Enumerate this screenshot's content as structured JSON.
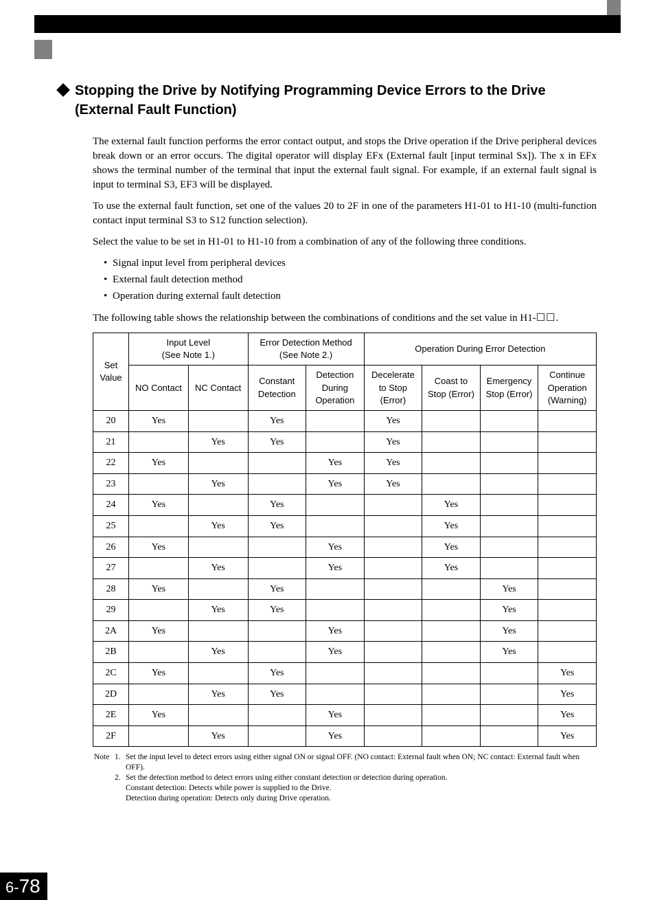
{
  "heading": "Stopping the Drive by Notifying Programming Device Errors to the Drive (External Fault Function)",
  "paragraphs": {
    "p1": "The external fault function performs the error contact output, and stops the Drive operation if the Drive peripheral devices break down or an error occurs. The digital operator will display EFx (External fault [input terminal Sx]). The x in EFx shows the terminal number of the terminal that input the external fault signal. For example, if an external fault signal is input to terminal S3, EF3 will be displayed.",
    "p2": "To use the external fault function, set one of the values 20 to 2F in one of the parameters H1-01 to H1-10 (multi-function contact input terminal S3 to S12 function selection).",
    "p3": "Select the value to be set in H1-01 to H1-10 from a combination of any of the following three conditions.",
    "p4_prefix": "The following table shows the relationship between the combinations of conditions and the set value in H1-",
    "p4_suffix": "."
  },
  "bullets": {
    "b1": "Signal input level from peripheral devices",
    "b2": "External fault detection method",
    "b3": "Operation during external fault detection"
  },
  "table": {
    "headers": {
      "set_value": "Set Value",
      "input_level": "Input Level\n(See Note 1.)",
      "error_detection": "Error Detection Method\n(See Note 2.)",
      "operation_during": "Operation During Error Detection",
      "no_contact": "NO Contact",
      "nc_contact": "NC Contact",
      "constant": "Constant Detection",
      "during_op": "Detection During Operation",
      "decel": "Decelerate to Stop (Error)",
      "coast": "Coast to Stop (Error)",
      "emergency": "Emergency Stop (Error)",
      "continue": "Continue Operation (Warning)"
    },
    "rows": [
      {
        "sv": "20",
        "no": "Yes",
        "nc": "",
        "cd": "Yes",
        "do": "",
        "dec": "Yes",
        "co": "",
        "em": "",
        "con": ""
      },
      {
        "sv": "21",
        "no": "",
        "nc": "Yes",
        "cd": "Yes",
        "do": "",
        "dec": "Yes",
        "co": "",
        "em": "",
        "con": ""
      },
      {
        "sv": "22",
        "no": "Yes",
        "nc": "",
        "cd": "",
        "do": "Yes",
        "dec": "Yes",
        "co": "",
        "em": "",
        "con": ""
      },
      {
        "sv": "23",
        "no": "",
        "nc": "Yes",
        "cd": "",
        "do": "Yes",
        "dec": "Yes",
        "co": "",
        "em": "",
        "con": ""
      },
      {
        "sv": "24",
        "no": "Yes",
        "nc": "",
        "cd": "Yes",
        "do": "",
        "dec": "",
        "co": "Yes",
        "em": "",
        "con": ""
      },
      {
        "sv": "25",
        "no": "",
        "nc": "Yes",
        "cd": "Yes",
        "do": "",
        "dec": "",
        "co": "Yes",
        "em": "",
        "con": ""
      },
      {
        "sv": "26",
        "no": "Yes",
        "nc": "",
        "cd": "",
        "do": "Yes",
        "dec": "",
        "co": "Yes",
        "em": "",
        "con": ""
      },
      {
        "sv": "27",
        "no": "",
        "nc": "Yes",
        "cd": "",
        "do": "Yes",
        "dec": "",
        "co": "Yes",
        "em": "",
        "con": ""
      },
      {
        "sv": "28",
        "no": "Yes",
        "nc": "",
        "cd": "Yes",
        "do": "",
        "dec": "",
        "co": "",
        "em": "Yes",
        "con": ""
      },
      {
        "sv": "29",
        "no": "",
        "nc": "Yes",
        "cd": "Yes",
        "do": "",
        "dec": "",
        "co": "",
        "em": "Yes",
        "con": ""
      },
      {
        "sv": "2A",
        "no": "Yes",
        "nc": "",
        "cd": "",
        "do": "Yes",
        "dec": "",
        "co": "",
        "em": "Yes",
        "con": ""
      },
      {
        "sv": "2B",
        "no": "",
        "nc": "Yes",
        "cd": "",
        "do": "Yes",
        "dec": "",
        "co": "",
        "em": "Yes",
        "con": ""
      },
      {
        "sv": "2C",
        "no": "Yes",
        "nc": "",
        "cd": "Yes",
        "do": "",
        "dec": "",
        "co": "",
        "em": "",
        "con": "Yes"
      },
      {
        "sv": "2D",
        "no": "",
        "nc": "Yes",
        "cd": "Yes",
        "do": "",
        "dec": "",
        "co": "",
        "em": "",
        "con": "Yes"
      },
      {
        "sv": "2E",
        "no": "Yes",
        "nc": "",
        "cd": "",
        "do": "Yes",
        "dec": "",
        "co": "",
        "em": "",
        "con": "Yes"
      },
      {
        "sv": "2F",
        "no": "",
        "nc": "Yes",
        "cd": "",
        "do": "Yes",
        "dec": "",
        "co": "",
        "em": "",
        "con": "Yes"
      }
    ]
  },
  "notes": {
    "label": "Note",
    "n1_num": "1.",
    "n1": "Set the input level to detect errors using either signal ON or signal OFF. (NO contact: External fault when ON; NC contact: External fault when OFF).",
    "n2_num": "2.",
    "n2a": "Set the detection method to detect errors using either constant detection or detection during operation.",
    "n2b": "Constant detection: Detects while power is supplied to the Drive.",
    "n2c": "Detection during operation: Detects only during Drive operation."
  },
  "page": {
    "chapter": "6-",
    "num": "78"
  }
}
